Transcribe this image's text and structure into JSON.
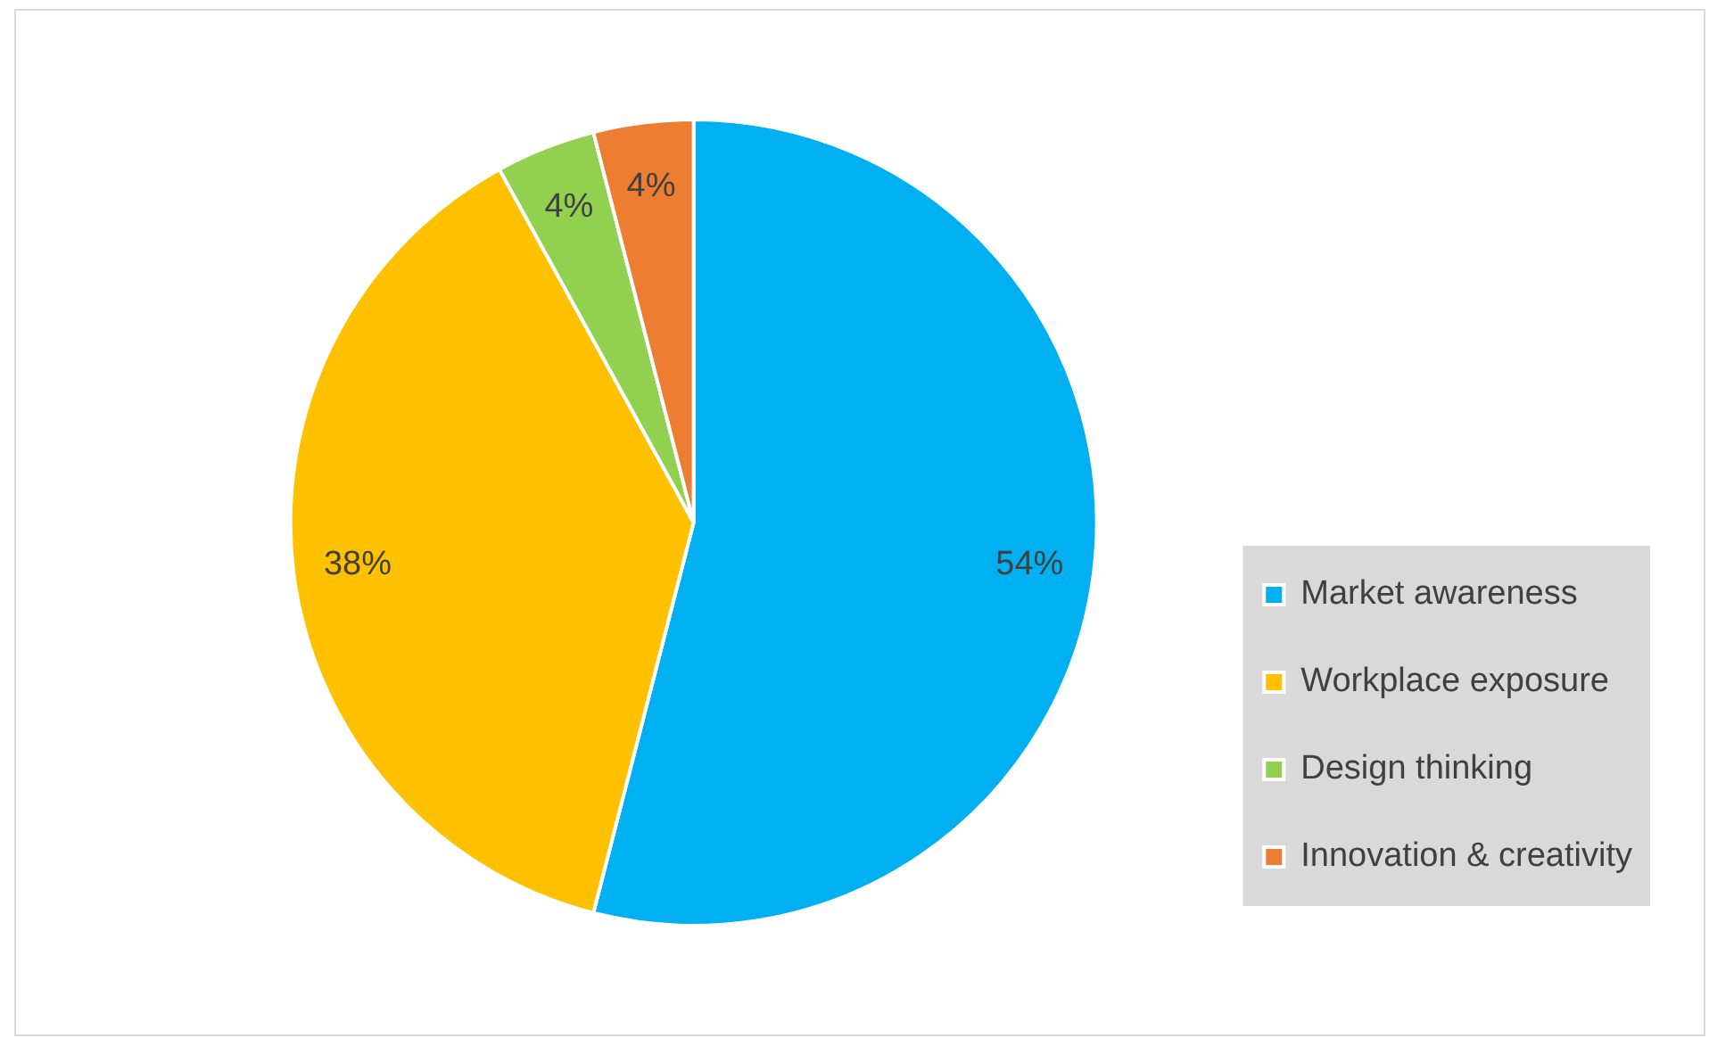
{
  "chart_data": {
    "type": "pie",
    "categories": [
      "Market awareness",
      "Workplace exposure",
      "Design thinking",
      "Innovation & creativity"
    ],
    "values": [
      54,
      38,
      4,
      4
    ],
    "colors": [
      "#00b0f0",
      "#ffc000",
      "#92d050",
      "#ed7d31"
    ],
    "value_labels": [
      "54%",
      "38%",
      "4%",
      "4%"
    ],
    "legend": "right"
  }
}
